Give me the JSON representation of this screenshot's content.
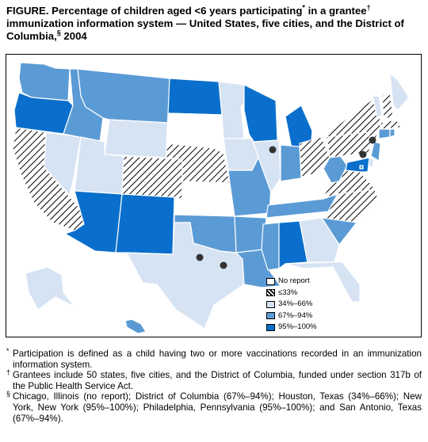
{
  "title": {
    "text_1": "FIGURE. Percentage of children aged <6 years participating",
    "sup_1": "*",
    "text_2": " in a grantee",
    "sup_2": "†",
    "text_3": " immunization information system — United States, five cities, and the District of Columbia,",
    "sup_3": "§",
    "text_4": " 2004"
  },
  "colors": {
    "no_report": "#ffffff",
    "le33": "hatched",
    "p34_66": "#d6e3f3",
    "p67_94": "#5b9bd5",
    "p95_100": "#0a6fcc"
  },
  "legend": [
    {
      "key": "no_report",
      "label": "No report"
    },
    {
      "key": "le33",
      "label": "≤33%"
    },
    {
      "key": "p34_66",
      "label": "34%–66%"
    },
    {
      "key": "p67_94",
      "label": "67%–94%"
    },
    {
      "key": "p95_100",
      "label": "95%–100%"
    }
  ],
  "states": {
    "WA": "p67_94",
    "OR": "p95_100",
    "CA": "le33",
    "NV": "p34_66",
    "ID": "p67_94",
    "MT": "p67_94",
    "WY": "p34_66",
    "UT": "p34_66",
    "AZ": "p95_100",
    "CO": "le33",
    "NM": "p95_100",
    "ND": "p95_100",
    "SD": "no_report",
    "NE": "le33",
    "KS": "no_report",
    "OK": "p67_94",
    "TX": "p34_66",
    "MN": "p34_66",
    "IA": "p34_66",
    "MO": "p67_94",
    "AR": "p67_94",
    "LA": "p67_94",
    "WI": "p95_100",
    "IL": "p34_66",
    "MI": "p95_100",
    "IN": "p67_94",
    "OH": "le33",
    "KY": "no_report",
    "TN": "p67_94",
    "MS": "p67_94",
    "AL": "p95_100",
    "GA": "p34_66",
    "FL": "p34_66",
    "SC": "p67_94",
    "NC": "le33",
    "VA": "le33",
    "WV": "p67_94",
    "PA": "le33",
    "NY": "le33",
    "ME": "p34_66",
    "VT": "p34_66",
    "NH": "le33",
    "MA": "le33",
    "CT": "p67_94",
    "RI": "p67_94",
    "NJ": "p67_94",
    "DE": "p34_66",
    "MD": "p95_100",
    "DC": "p67_94",
    "AK": "p34_66",
    "HI": "p67_94"
  },
  "cities": [
    "Chicago",
    "Houston",
    "New York",
    "Philadelphia",
    "San Antonio"
  ],
  "footnotes": [
    {
      "mark": "*",
      "text": "Participation is defined as a child having two or more vaccinations recorded in an immunization information system."
    },
    {
      "mark": "†",
      "text": "Grantees include 50 states, five cities, and the District of Columbia, funded under section 317b of the Public Health Service Act."
    },
    {
      "mark": "§",
      "text": "Chicago, Illinois (no report); District of Columbia (67%–94%); Houston, Texas (34%–66%); New York, New York (95%–100%); Philadelphia, Pennsylvania (95%–100%); and San Antonio, Texas (67%–94%)."
    }
  ]
}
